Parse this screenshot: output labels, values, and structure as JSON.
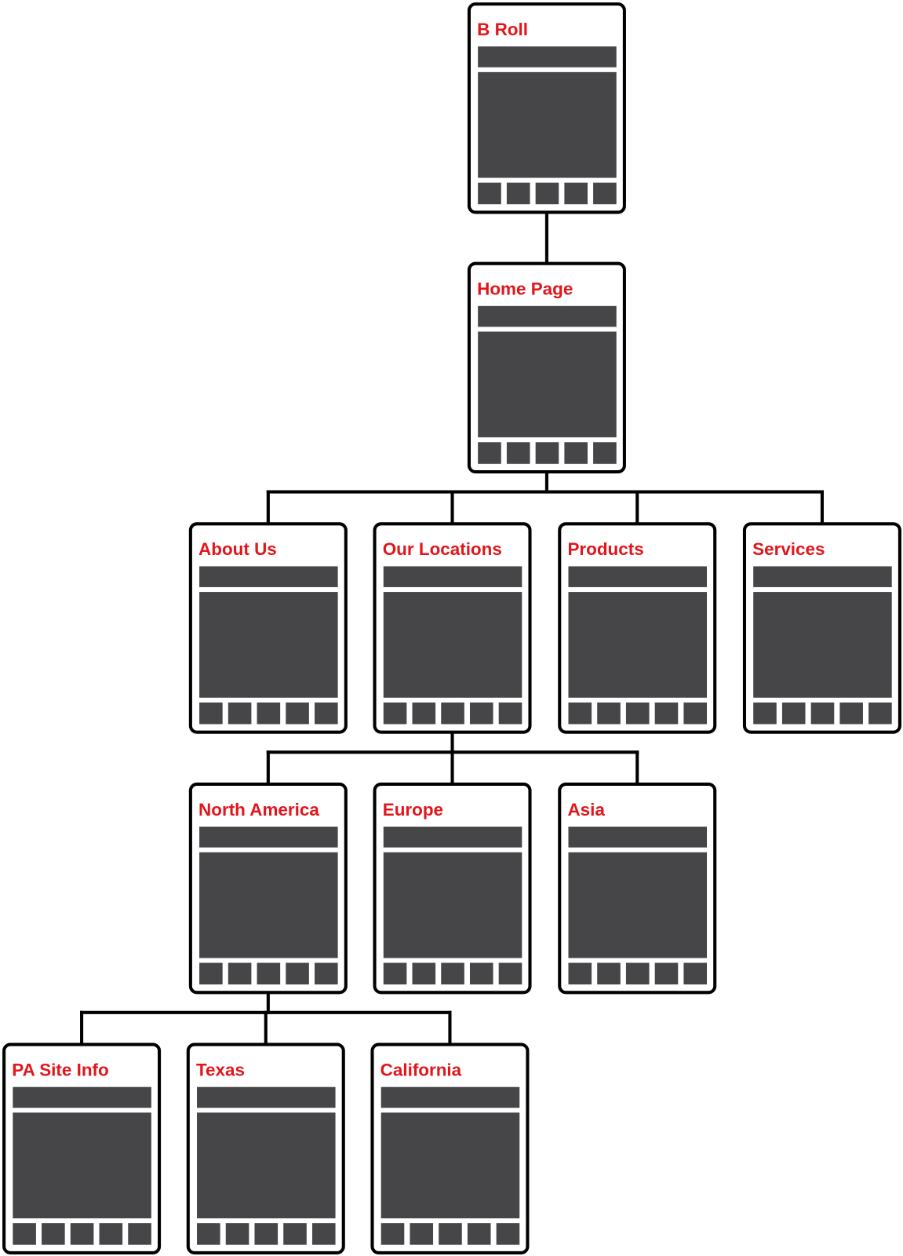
{
  "tree": {
    "label": "B Roll",
    "children": [
      {
        "label": "Home Page",
        "children": [
          {
            "label": "About Us",
            "children": []
          },
          {
            "label": "Our Locations",
            "children": [
              {
                "label": "North America",
                "children": [
                  {
                    "label": "PA Site Info",
                    "children": []
                  },
                  {
                    "label": "Texas",
                    "children": []
                  },
                  {
                    "label": "California",
                    "children": []
                  }
                ]
              },
              {
                "label": "Europe",
                "children": []
              },
              {
                "label": "Asia",
                "children": []
              }
            ]
          },
          {
            "label": "Products",
            "children": []
          },
          {
            "label": "Services",
            "children": []
          }
        ]
      }
    ]
  }
}
